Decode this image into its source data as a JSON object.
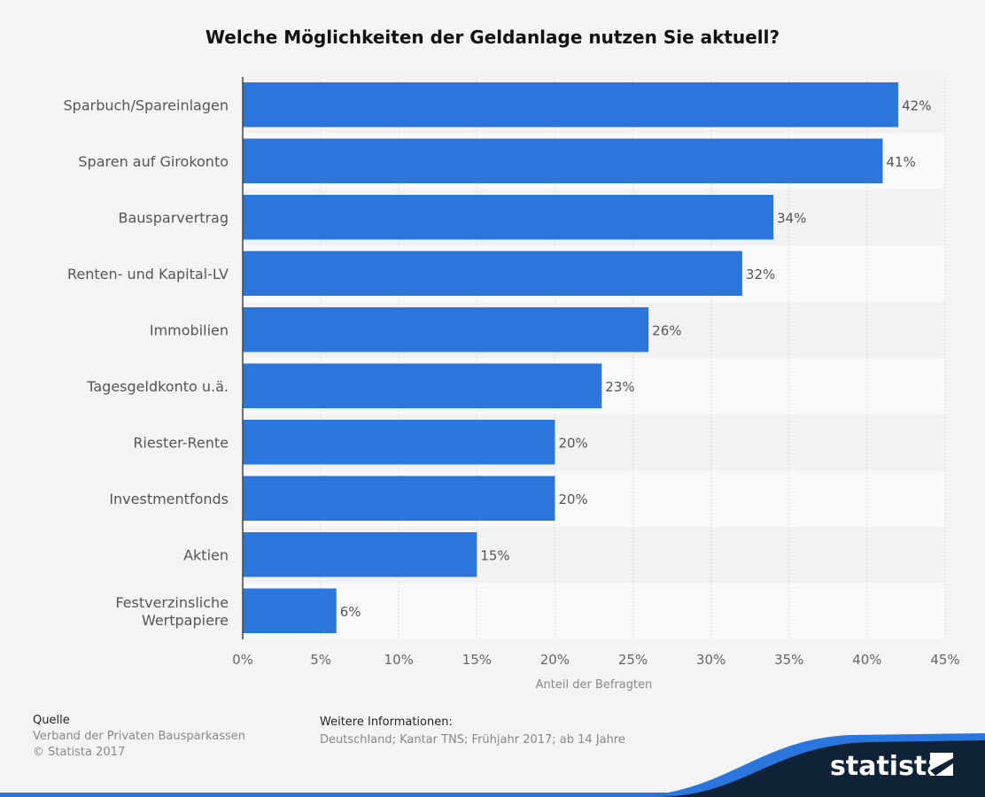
{
  "chart_data": {
    "type": "bar",
    "orientation": "horizontal",
    "title": "Welche Möglichkeiten der Geldanlage nutzen Sie aktuell?",
    "xlabel": "Anteil der Befragten",
    "ylabel": "",
    "categories": [
      "Sparbuch/Spareinlagen",
      "Sparen auf Girokonto",
      "Bausparvertrag",
      "Renten- und Kapital-LV",
      "Immobilien",
      "Tagesgeldkonto u.ä.",
      "Riester-Rente",
      "Investmentfonds",
      "Aktien",
      "Festverzinsliche Wertpapiere"
    ],
    "values": [
      42,
      41,
      34,
      32,
      26,
      23,
      20,
      20,
      15,
      6
    ],
    "data_labels": [
      "42%",
      "41%",
      "34%",
      "32%",
      "26%",
      "23%",
      "20%",
      "20%",
      "15%",
      "6%"
    ],
    "xlim": [
      0,
      45
    ],
    "xticks": [
      0,
      5,
      10,
      15,
      20,
      25,
      30,
      35,
      40,
      45
    ],
    "xtick_labels": [
      "0%",
      "5%",
      "10%",
      "15%",
      "20%",
      "25%",
      "30%",
      "35%",
      "40%",
      "45%"
    ],
    "grid": true,
    "bar_color": "#2a76dd"
  },
  "footer": {
    "source_heading": "Quelle",
    "source": "Verband der Privaten Bausparkassen",
    "copyright": "© Statista 2017",
    "info_heading": "Weitere Informationen:",
    "info": "Deutschland; Kantar TNS; Frühjahr 2017; ab 14 Jahre",
    "brand": "statista"
  }
}
